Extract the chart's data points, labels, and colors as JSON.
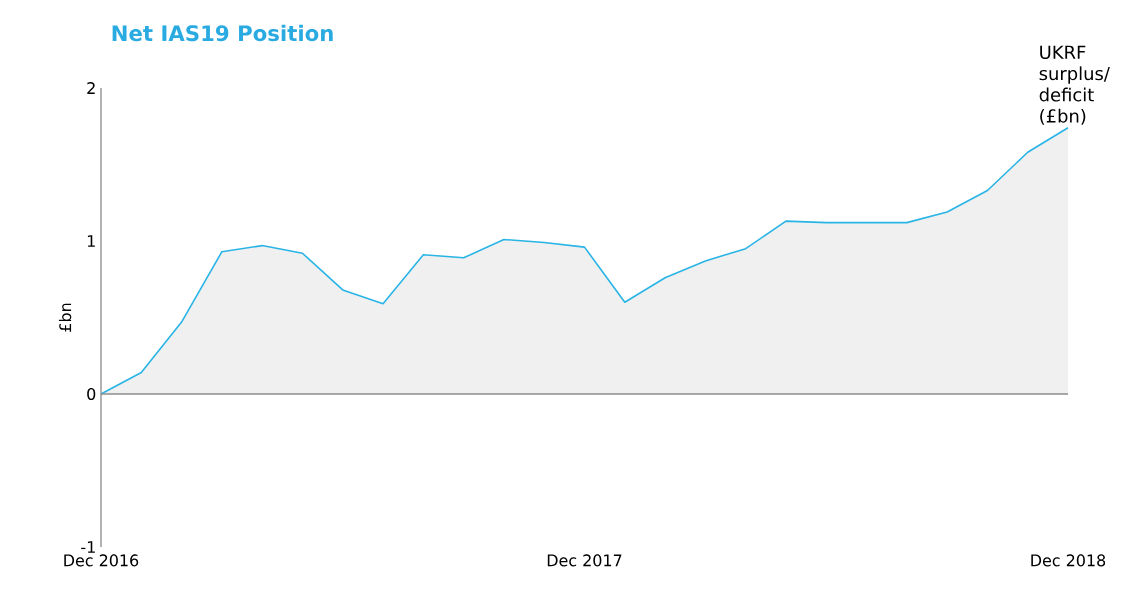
{
  "chart_data": {
    "type": "area",
    "title": "Net IAS19 Position",
    "ylabel": "£bn",
    "categories": [
      "Dec 2016",
      null,
      null,
      null,
      null,
      null,
      null,
      null,
      null,
      null,
      null,
      null,
      "Dec 2017",
      null,
      null,
      null,
      null,
      null,
      null,
      null,
      null,
      null,
      null,
      null,
      "Dec 2018"
    ],
    "series": [
      {
        "name": "UKRF surplus/ deficit (£bn)",
        "color": "#29b4e6",
        "values": [
          0,
          0.14,
          0.47,
          0.93,
          0.97,
          0.92,
          0.68,
          0.59,
          0.91,
          0.89,
          1.01,
          0.99,
          0.96,
          0.6,
          0.76,
          0.87,
          0.95,
          1.13,
          1.12,
          1.12,
          1.12,
          1.19,
          1.33,
          1.58,
          1.74
        ]
      }
    ],
    "ylim": [
      -1,
      2
    ],
    "yticks": [
      -1,
      0,
      1,
      2
    ]
  }
}
